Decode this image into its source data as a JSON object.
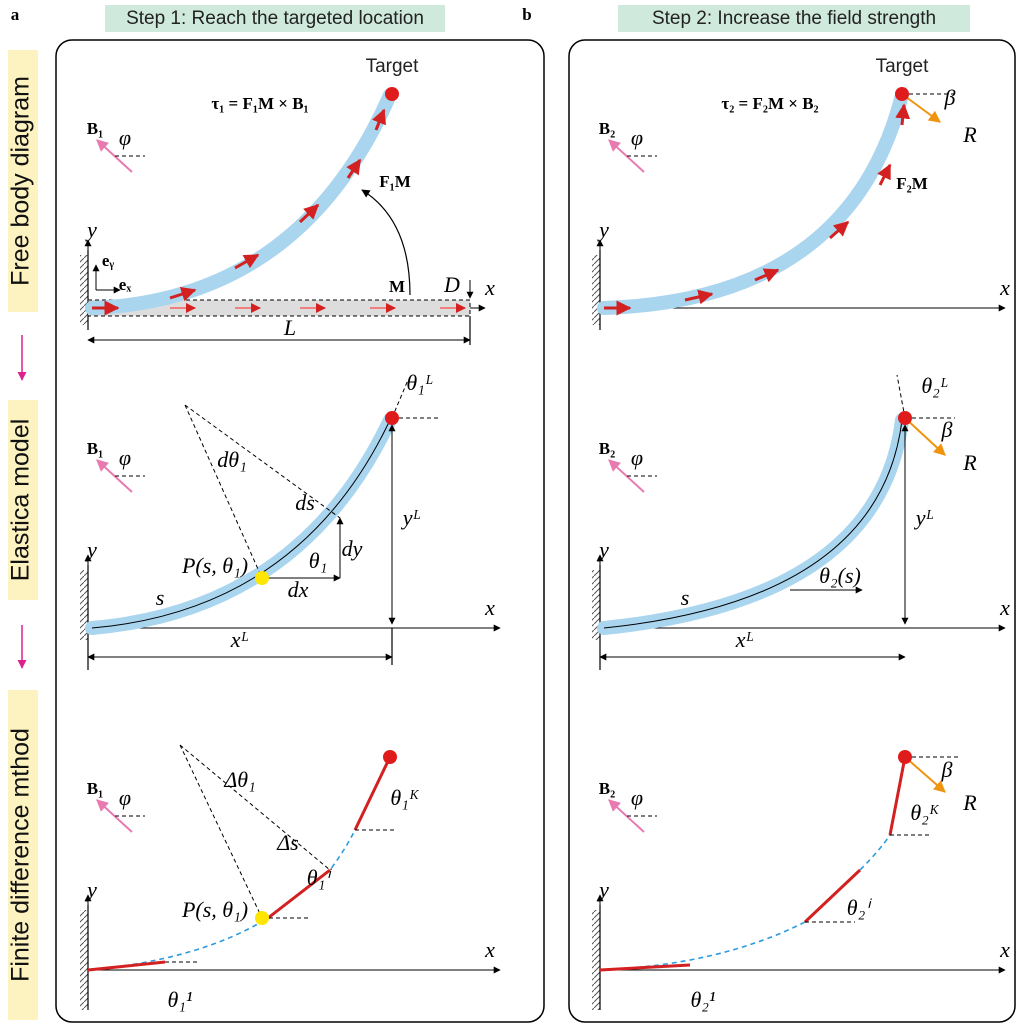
{
  "row_labels": [
    "Free body diagram",
    "Elastica model",
    "Finite difference mthod"
  ],
  "panel_a": {
    "letter": "a",
    "step": "Step 1: Reach the targeted location",
    "free_body": {
      "equation": "τ₁ = F₁M × B₁",
      "field": "B₁",
      "angle": "φ",
      "target": "Target",
      "force_moment": "F₁M",
      "moment": "M",
      "thickness": "D",
      "x_axis": "x",
      "y_axis": "y",
      "length": "L",
      "ey": "eᵧ",
      "ex": "eₓ"
    },
    "elastica": {
      "field": "B₁",
      "angle": "φ",
      "tip_angle": "θ₁ᴸ",
      "d_theta": "dθ₁",
      "ds": "ds",
      "point": "P(s, θ₁)",
      "theta": "θ₁",
      "dy": "dy",
      "dx": "dx",
      "tip_y": "yᴸ",
      "tip_x": "xᴸ",
      "arc": "s",
      "x_axis": "x",
      "y_axis": "y"
    },
    "finite": {
      "field": "B₁",
      "angle": "φ",
      "tip_angle": "θ₁ᴷ",
      "delta_theta": "Δθ₁",
      "delta_s": "Δs",
      "point": "P(s, θ₁)",
      "theta_i": "θ₁ⁱ",
      "theta_1": "θ₁¹",
      "x_axis": "x",
      "y_axis": "y"
    }
  },
  "panel_b": {
    "letter": "b",
    "step": "Step 2: Increase the field strength",
    "free_body": {
      "equation": "τ₂ = F₂M × B₂",
      "field": "B₂",
      "angle": "φ",
      "target": "Target",
      "force_moment": "F₂M",
      "beta": "β",
      "reaction": "R",
      "x_axis": "x",
      "y_axis": "y"
    },
    "elastica": {
      "field": "B₂",
      "angle": "φ",
      "tip_angle": "θ₂ᴸ",
      "beta": "β",
      "reaction": "R",
      "tip_y": "yᴸ",
      "tip_x": "xᴸ",
      "theta_s": "θ₂(s)",
      "arc": "s",
      "x_axis": "x",
      "y_axis": "y"
    },
    "finite": {
      "field": "B₂",
      "angle": "φ",
      "tip_angle": "θ₂ᴷ",
      "beta": "β",
      "reaction": "R",
      "theta_i": "θ₂ⁱ",
      "theta_1": "θ₂¹",
      "x_axis": "x",
      "y_axis": "y"
    }
  }
}
